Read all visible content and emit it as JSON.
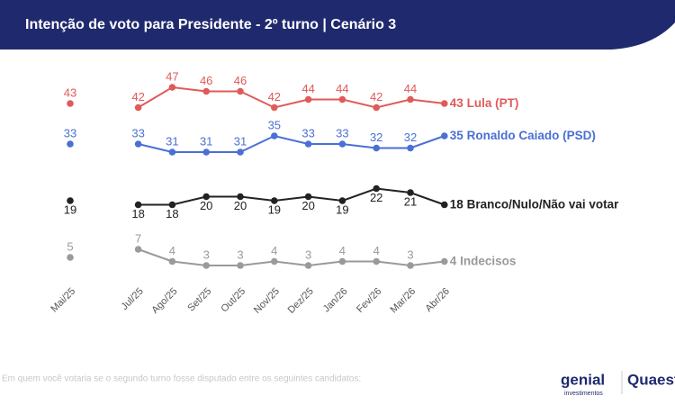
{
  "chart_data": {
    "type": "line",
    "title": "Intenção de voto para Presidente - 2º turno | Cenário 3",
    "categories": [
      "Mai/25",
      null,
      "Jul/25",
      "Ago/25",
      "Set/25",
      "Out/25",
      "Nov/25",
      "Dez/25",
      "Jan/26",
      "Fev/26",
      "Mar/26",
      "Abr/26"
    ],
    "series": [
      {
        "name": "Lula (PT)",
        "color": "#e05a5a",
        "values": [
          43,
          null,
          42,
          47,
          46,
          46,
          42,
          44,
          44,
          42,
          44,
          43
        ]
      },
      {
        "name": "Ronaldo Caiado (PSD)",
        "color": "#4a6fd6",
        "values": [
          33,
          null,
          33,
          31,
          31,
          31,
          35,
          33,
          33,
          32,
          32,
          35
        ]
      },
      {
        "name": "Branco/Nulo/Não vai votar",
        "color": "#222222",
        "values": [
          19,
          null,
          18,
          18,
          20,
          20,
          19,
          20,
          19,
          22,
          21,
          18
        ]
      },
      {
        "name": "Indecisos",
        "color": "#9a9a9a",
        "values": [
          5,
          null,
          7,
          4,
          3,
          3,
          4,
          3,
          4,
          4,
          3,
          4
        ]
      }
    ],
    "note": "Em quem você votaria se o segundo turno fosse disputado entre os seguintes candidatos:",
    "logos": [
      "genial",
      "investimentos",
      "Quaest"
    ]
  }
}
